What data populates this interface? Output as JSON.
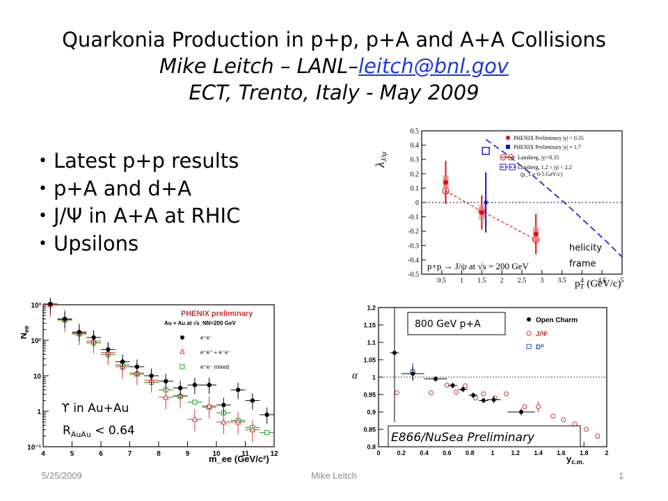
{
  "slide": {
    "title_line1": "Quarkonia Production in p+p, p+A and A+A Collisions",
    "author": "Mike Leitch – LANL–",
    "email": "leitch@bnl.gov",
    "venue": "ECT, Trento, Italy  - May 2009",
    "bullets": [
      "Latest p+p results",
      "p+A and d+A",
      "J/Ψ in A+A at RHIC",
      "Upsilons"
    ],
    "footer": {
      "date": "5/25/2009",
      "author": "Mike Leitch",
      "page": "1"
    },
    "colors": {
      "link": "#1f3ad1",
      "footer_text": "#8a8a8a"
    }
  },
  "chart_data": [
    {
      "type": "scatter",
      "xlabel": "p_T (GeV/c)",
      "ylabel": "λ_J/ψ",
      "xlim": [
        0,
        5
      ],
      "ylim": [
        -0.5,
        0.5
      ],
      "x_ticks": [
        "0.5",
        "1",
        "1.5",
        "2",
        "2.5",
        "3",
        "3.5",
        "4",
        "4.5",
        "5"
      ],
      "y_ticks": [
        "-0.5",
        "-0.4",
        "-0.3",
        "-0.2",
        "-0.1",
        "0",
        "0.1",
        "0.2",
        "0.3",
        "0.4",
        "0.5"
      ],
      "legend": [
        "PHENIX Preliminary |y| < 0.35",
        "PHENIX Preliminary |y| = 1.7",
        "Lansberg, |y|<0.35",
        "Lansberg, 1.2 < |y| < 2.2",
        "(p_T = 0-5 GeV/c)"
      ],
      "legend_placement": "top-right",
      "annotations": [
        "p+p → J/ψ at √s = 200 GeV",
        "helicity",
        "frame"
      ],
      "series": [
        {
          "name": "PHENIX Preliminary |y| < 0.35",
          "color": "#e01010",
          "x": [
            0.6,
            1.5,
            2.85
          ],
          "y": [
            0.14,
            -0.07,
            -0.22
          ],
          "yerr": [
            0.15,
            0.12,
            0.14
          ]
        },
        {
          "name": "PHENIX Preliminary |y| = 1.7",
          "color": "#1010d0",
          "x": [
            1.6
          ],
          "y": [
            0.0
          ],
          "yerr": [
            0.21
          ]
        },
        {
          "name": "Lansberg, |y|<0.35",
          "color": "#e01010",
          "x": [
            0.6,
            1.5,
            2.85
          ],
          "y": [
            0.08,
            -0.06,
            -0.26
          ]
        },
        {
          "name": "Lansberg, 1.2 < |y| < 2.2",
          "color": "#1010d0",
          "x": [
            1.6,
            2.1,
            2.6,
            3.1,
            3.6,
            4.1,
            4.6,
            5.0
          ],
          "y": [
            0.44,
            0.34,
            0.23,
            0.11,
            -0.01,
            -0.14,
            -0.27,
            -0.38
          ]
        }
      ]
    },
    {
      "type": "scatter",
      "title": "PHENIX preliminary",
      "subtitle": "Au + Au  at √s_NN=200 GeV",
      "xlabel": "m_ee (GeV/c²)",
      "ylabel": "N_ee",
      "xlim": [
        4,
        12
      ],
      "ylim": [
        0.1,
        1000
      ],
      "log_y": true,
      "x_ticks": [
        "4",
        "5",
        "6",
        "7",
        "8",
        "9",
        "10",
        "11",
        "12"
      ],
      "y_ticks": [
        "10⁻¹",
        "1",
        "10",
        "10²",
        "10³"
      ],
      "legend_placement": "top-right",
      "annotations": [
        "ϒ in Au+Au",
        "R_AuAu < 0.64"
      ],
      "series": [
        {
          "name": "e⁺e⁻",
          "color": "#000000",
          "x": [
            4.25,
            4.75,
            5.25,
            5.75,
            6.25,
            6.75,
            7.25,
            7.75,
            8.25,
            8.75,
            9.25,
            9.75,
            10.25,
            10.75,
            11.25,
            11.75
          ],
          "y": [
            1050,
            400,
            170,
            120,
            55,
            25,
            18,
            10,
            7,
            4.5,
            5.5,
            5.5,
            1.5,
            4,
            2,
            0.8
          ]
        },
        {
          "name": "e⁺e⁺ + e⁻e⁻",
          "color": "#d03030",
          "x": [
            4.25,
            4.75,
            5.25,
            5.75,
            6.25,
            6.75,
            7.25,
            7.75,
            8.25,
            8.75,
            9.25,
            9.75,
            10.25,
            10.75,
            11.25
          ],
          "y": [
            1000,
            380,
            160,
            95,
            45,
            18,
            12,
            7.5,
            2.5,
            2.8,
            0.6,
            1.4,
            0.5,
            0.5,
            0.3
          ]
        },
        {
          "name": "e⁺e⁻ mixed",
          "color": "#2a9a2a",
          "x": [
            4.25,
            4.75,
            5.25,
            5.75,
            6.25,
            6.75,
            7.25,
            7.75,
            8.25,
            8.75,
            9.25,
            9.75,
            10.25,
            10.75,
            11.25,
            11.75
          ],
          "y": [
            1000,
            370,
            150,
            85,
            40,
            20,
            11,
            6.5,
            4,
            2.6,
            1.8,
            1.3,
            0.9,
            0.55,
            0.35,
            0.25
          ]
        }
      ]
    },
    {
      "type": "scatter",
      "xlabel": "y_c.m.",
      "ylabel": "α",
      "xlim": [
        0,
        2
      ],
      "ylim": [
        0.8,
        1.2
      ],
      "x_ticks": [
        "0",
        "0.2",
        "0.4",
        "0.6",
        "0.8",
        "1",
        "1.2",
        "1.4",
        "1.6",
        "1.8",
        "2"
      ],
      "y_ticks": [
        "0.8",
        "0.85",
        "0.9",
        "0.95",
        "1",
        "1.05",
        "1.1",
        "1.15",
        "1.2"
      ],
      "legend_placement": "top-right",
      "annotations": [
        "800 GeV p+A",
        "E866/NuSea Preliminary"
      ],
      "series": [
        {
          "name": "Open Charm",
          "color": "#000000",
          "x": [
            0.14,
            0.3,
            0.5,
            0.65,
            0.74,
            0.83,
            0.92,
            1.01,
            1.25
          ],
          "y": [
            1.07,
            1.01,
            0.995,
            0.976,
            0.965,
            0.948,
            0.933,
            0.935,
            0.9
          ]
        },
        {
          "name": "J/Ψ",
          "color": "#d03030",
          "x": [
            0.16,
            0.3,
            0.46,
            0.6,
            0.68,
            0.76,
            0.85,
            0.92,
            1.02,
            1.12,
            1.28,
            1.4,
            1.53,
            1.62,
            1.72,
            1.82,
            1.92
          ],
          "y": [
            0.955,
            1.015,
            0.955,
            0.977,
            0.957,
            0.975,
            0.94,
            0.952,
            0.94,
            0.952,
            0.915,
            0.915,
            0.888,
            0.878,
            0.865,
            0.85,
            0.83
          ]
        },
        {
          "name": "D⁰",
          "color": "#2050c0",
          "x": [
            0.3
          ],
          "y": [
            1.015
          ]
        }
      ]
    }
  ]
}
